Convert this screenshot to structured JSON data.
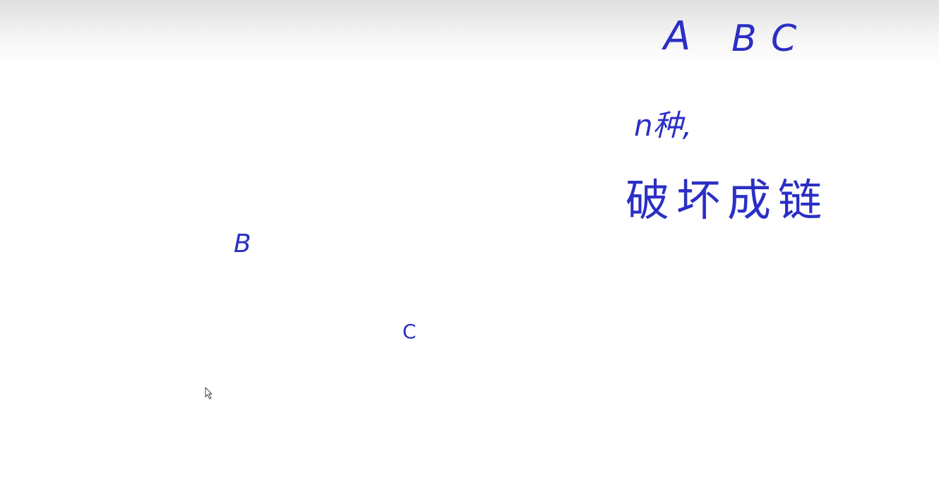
{
  "colors": {
    "ink": "#2b2fc4",
    "background": "#ffffff"
  },
  "notes": {
    "letters": [
      "A",
      "B",
      "C"
    ],
    "line1": "n种,",
    "line2": "破坏成链"
  },
  "circle_labels": {
    "b": "B",
    "c": "C"
  }
}
